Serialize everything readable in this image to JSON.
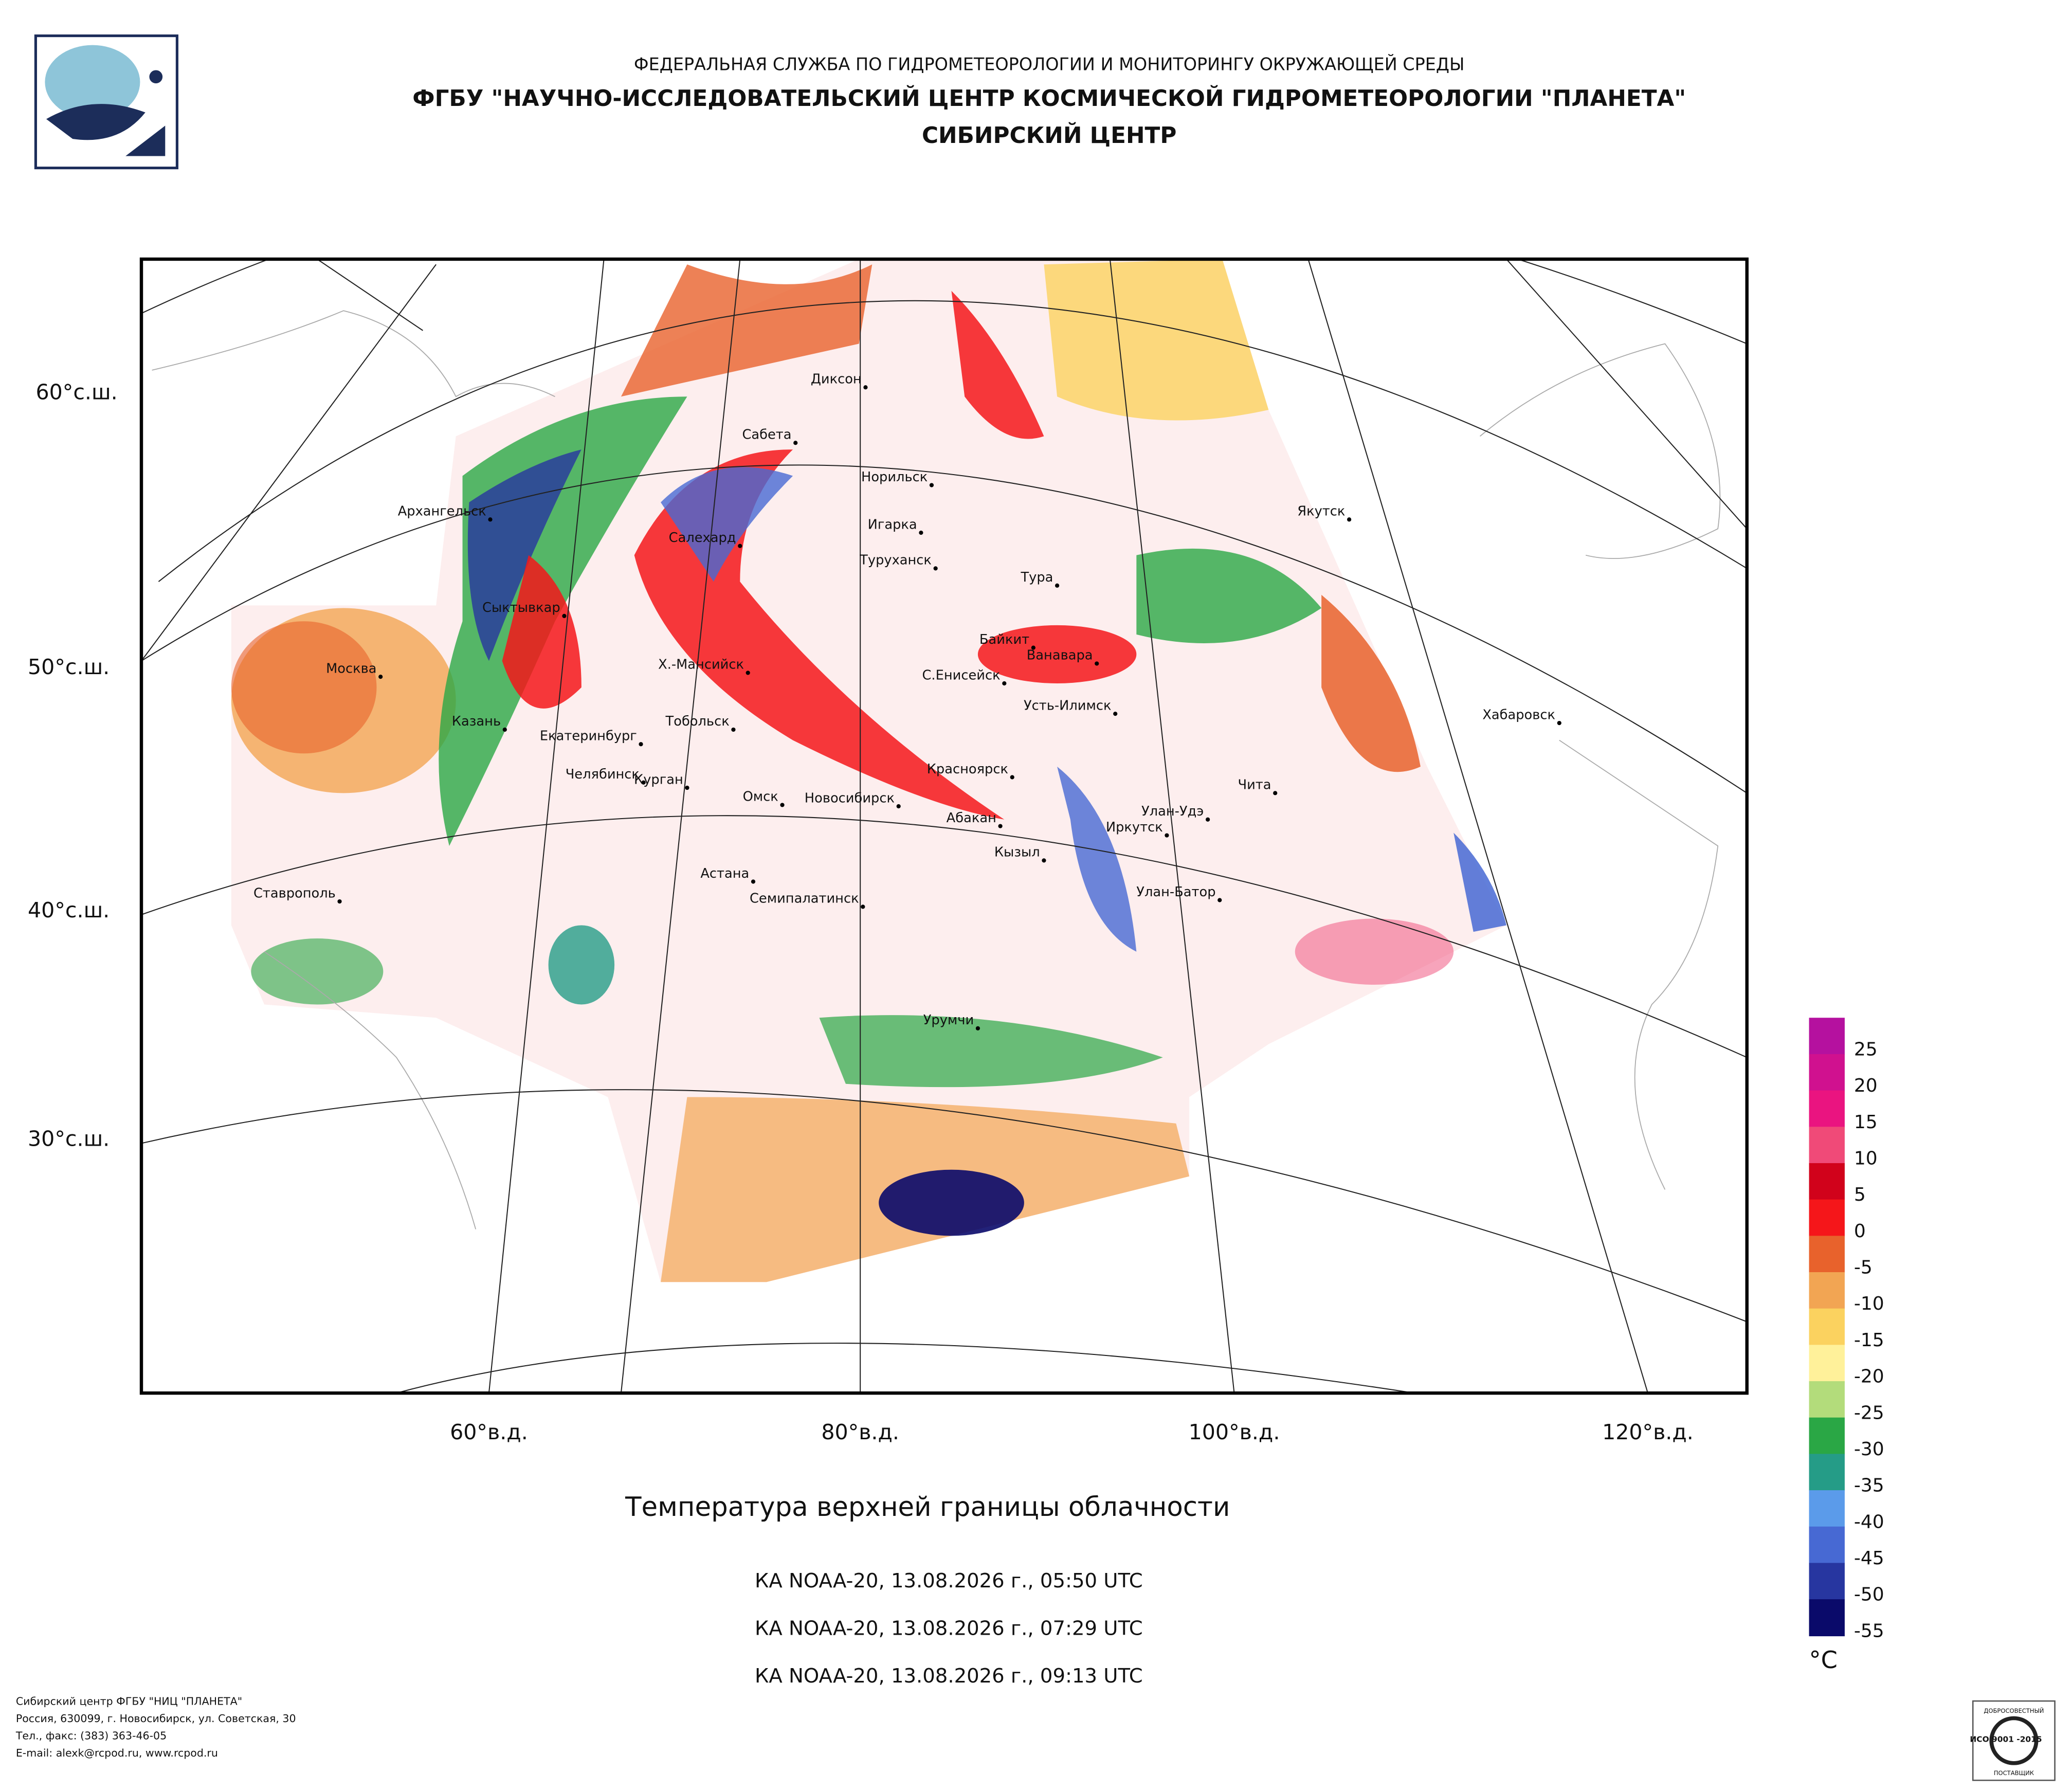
{
  "header": {
    "agency": "ФЕДЕРАЛЬНАЯ СЛУЖБА ПО ГИДРОМЕТЕОРОЛОГИИ И МОНИТОРИНГУ ОКРУЖАЮЩЕЙ СРЕДЫ",
    "center": "ФГБУ \"НАУЧНО-ИССЛЕДОВАТЕЛЬСКИЙ ЦЕНТР КОСМИЧЕСКОЙ ГИДРОМЕТЕОРОЛОГИИ \"ПЛАНЕТА\"",
    "branch": "СИБИРСКИЙ ЦЕНТР"
  },
  "map": {
    "lat_labels": [
      "60°с.ш.",
      "50°с.ш.",
      "40°с.ш.",
      "30°с.ш."
    ],
    "lon_labels": [
      "60°в.д.",
      "80°в.д.",
      "100°в.д.",
      "120°в.д."
    ],
    "cities": [
      "Диксон",
      "Сабета",
      "Норильск",
      "Архангельск",
      "Салехард",
      "Игарка",
      "Якутск",
      "Туруханск",
      "Тура",
      "Сыктывкар",
      "Байкит",
      "Ванавара",
      "Москва",
      "Х.-Мансийск",
      "С.Енисейск",
      "Усть-Илимск",
      "Хабаровск",
      "Казань",
      "Тобольск",
      "Екатеринбург",
      "Красноярск",
      "Челябинск",
      "Курган",
      "Чита",
      "Омск",
      "Новосибирск",
      "Абакан",
      "Улан-Удэ",
      "Иркутск",
      "Кызыл",
      "Ставрополь",
      "Астана",
      "Семипалатинск",
      "Улан-Батор",
      "Урумчи"
    ]
  },
  "title": "Температура верхней границы облачности",
  "passes": [
    "КА NOAA-20, 13.08.2026 г., 05:50 UTC",
    "КА NOAA-20, 13.08.2026 г., 07:29 UTC",
    "КА NOAA-20, 13.08.2026 г., 09:13 UTC"
  ],
  "legend": {
    "unit": "°C",
    "labels": [
      25,
      20,
      15,
      10,
      5,
      0,
      -5,
      -10,
      -15,
      -20,
      -25,
      -30,
      -35,
      -40,
      -45,
      -50,
      -55
    ],
    "colors": [
      "#b5119f",
      "#d0118f",
      "#ea1480",
      "#f04a78",
      "#d1021b",
      "#f5161a",
      "#e8622c",
      "#f2a553",
      "#fbd25f",
      "#fff19a",
      "#b3dc7b",
      "#2aa745",
      "#259c87",
      "#5b9bea",
      "#4769d3",
      "#2736a0",
      "#0a0a6a"
    ]
  },
  "footer": [
    "Сибирский центр ФГБУ \"НИЦ \"ПЛАНЕТА\"",
    "Россия, 630099, г. Новосибирск, ул. Советская, 30",
    "Тел., факс: (383) 363-46-05",
    "E-mail: alexk@rcpod.ru, www.rcpod.ru"
  ],
  "badge": {
    "top": "ДОБРОСОВЕСТНЫЙ",
    "iso": "ИСО 9001 -2015",
    "bottom": "ПОСТАВЩИК"
  }
}
